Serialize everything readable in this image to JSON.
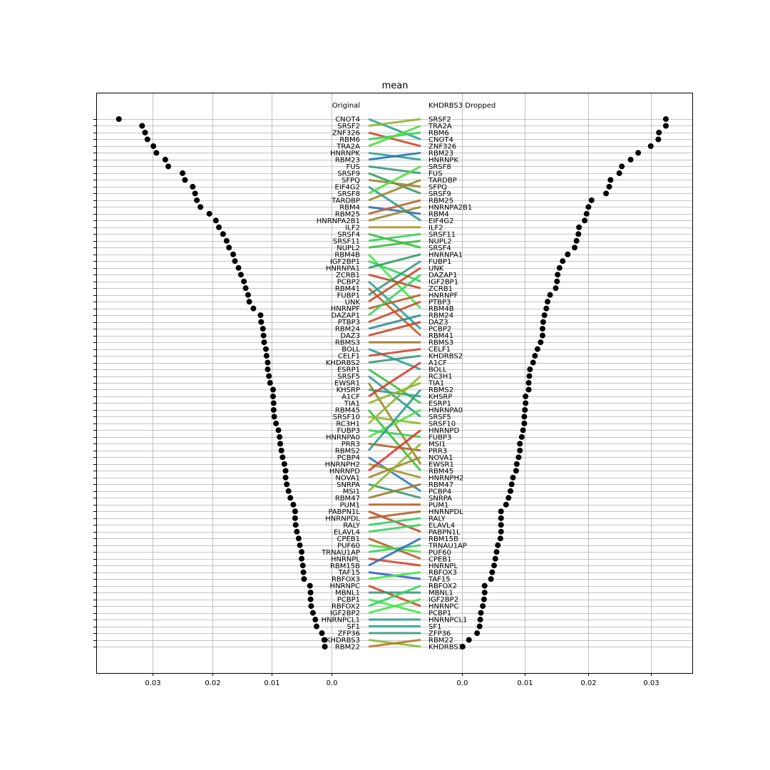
{
  "chart_data": {
    "type": "bump",
    "title": "mean",
    "left_column_title": "Original",
    "right_column_title": "KHDRBS3 Dropped",
    "grid": true,
    "left_axis": {
      "xlim": [
        0.0395,
        -0.0005
      ],
      "ticks": [
        0.03,
        0.02,
        0.01,
        0.0
      ],
      "tick_labels": [
        "0.03",
        "0.02",
        "0.01",
        "0.0"
      ]
    },
    "right_axis": {
      "xlim": [
        0.0,
        0.0366
      ],
      "ticks": [
        0.0,
        0.01,
        0.02,
        0.03
      ],
      "tick_labels": [
        "0.0",
        "0.01",
        "0.02",
        "0.03"
      ]
    },
    "original": {
      "labels": [
        "CNOT4",
        "SRSF2",
        "ZNF326",
        "RBM6",
        "TRA2A",
        "HNRNPK",
        "RBM23",
        "FUS",
        "SRSF9",
        "SFPQ",
        "EIF4G2",
        "SRSF8",
        "TARDBP",
        "RBM4",
        "RBM25",
        "HNRNPA2B1",
        "ILF2",
        "SRSF4",
        "SRSF11",
        "NUPL2",
        "RBM4B",
        "IGF2BP1",
        "HNRNPA1",
        "ZCRB1",
        "PCBP2",
        "RBM41",
        "FUBP1",
        "UNK",
        "HNRNPF",
        "DAZAP1",
        "PTBP3",
        "RBM24",
        "DAZ3",
        "RBMS3",
        "BOLL",
        "CELF1",
        "KHDRBS2",
        "ESRP1",
        "SRSF5",
        "EWSR1",
        "KHSRP",
        "A1CF",
        "TIA1",
        "RBM45",
        "SRSF10",
        "RC3H1",
        "FUBP3",
        "HNRNPA0",
        "PRR3",
        "RBMS2",
        "PCBP4",
        "HNRNPH2",
        "HNRNPD",
        "NOVA1",
        "SNRPA",
        "MSI1",
        "RBM47",
        "PUM1",
        "PABPN1L",
        "HNRNPDL",
        "RALY",
        "ELAVL4",
        "CPEB1",
        "PUF60",
        "TRNAU1AP",
        "HNRNPL",
        "RBM15B",
        "TAF15",
        "RBFOX3",
        "HNRNPC",
        "MBNL1",
        "PCBP1",
        "RBFOX2",
        "IGF2BP2",
        "HNRNPCL1",
        "SF1",
        "ZFP36",
        "KHDRBS3",
        "RBM22"
      ],
      "values": [
        0.0357,
        0.0318,
        0.0313,
        0.0309,
        0.0299,
        0.0294,
        0.0279,
        0.0274,
        0.025,
        0.0246,
        0.0233,
        0.0229,
        0.0226,
        0.022,
        0.0205,
        0.0194,
        0.0189,
        0.0182,
        0.0176,
        0.0172,
        0.0165,
        0.0162,
        0.0156,
        0.0152,
        0.0147,
        0.0144,
        0.014,
        0.0138,
        0.0131,
        0.0119,
        0.0118,
        0.0115,
        0.0114,
        0.0113,
        0.011,
        0.0109,
        0.0107,
        0.0107,
        0.0105,
        0.0103,
        0.0098,
        0.0098,
        0.0097,
        0.0097,
        0.0096,
        0.0093,
        0.0089,
        0.0087,
        0.0086,
        0.0084,
        0.0082,
        0.0079,
        0.0077,
        0.0077,
        0.0075,
        0.0072,
        0.0069,
        0.0064,
        0.0061,
        0.0061,
        0.006,
        0.0058,
        0.0055,
        0.0053,
        0.005,
        0.005,
        0.0048,
        0.0047,
        0.0046,
        0.0036,
        0.0035,
        0.0035,
        0.0034,
        0.0031,
        0.0027,
        0.0025,
        0.0016,
        0.0012,
        0.0011
      ]
    },
    "dropped": {
      "labels": [
        "SRSF2",
        "TRA2A",
        "RBM6",
        "CNOT4",
        "ZNF326",
        "RBM23",
        "HNRNPK",
        "SRSF8",
        "FUS",
        "TARDBP",
        "SFPQ",
        "SRSF9",
        "RBM25",
        "HNRNPA2B1",
        "RBM4",
        "EIF4G2",
        "ILF2",
        "SRSF11",
        "NUPL2",
        "SRSF4",
        "HNRNPA1",
        "FUBP1",
        "UNK",
        "DAZAP1",
        "IGF2BP1",
        "ZCRB1",
        "HNRNPF",
        "PTBP3",
        "RBM4B",
        "RBM24",
        "DAZ3",
        "PCBP2",
        "RBM41",
        "RBMS3",
        "CELF1",
        "KHDRBS2",
        "A1CF",
        "BOLL",
        "RC3H1",
        "TIA1",
        "RBMS2",
        "KHSRP",
        "ESRP1",
        "HNRNPA0",
        "SRSF5",
        "SRSF10",
        "HNRNPD",
        "FUBP3",
        "MSI1",
        "PRR3",
        "NOVA1",
        "EWSR1",
        "RBM45",
        "HNRNPH2",
        "RBM47",
        "PCBP4",
        "SNRPA",
        "PUM1",
        "HNRNPDL",
        "RALY",
        "ELAVL4",
        "PABPN1L",
        "RBM15B",
        "TRNAU1AP",
        "PUF60",
        "CPEB1",
        "HNRNPL",
        "RBFOX3",
        "TAF15",
        "RBFOX2",
        "MBNL1",
        "IGF2BP2",
        "HNRNPC",
        "PCBP1",
        "HNRNPCL1",
        "SF1",
        "ZFP36",
        "RBM22",
        "KHDRBS3"
      ],
      "values": [
        0.0324,
        0.0324,
        0.0313,
        0.0312,
        0.03,
        0.028,
        0.0268,
        0.0254,
        0.025,
        0.0236,
        0.0234,
        0.0229,
        0.0206,
        0.0201,
        0.0198,
        0.0195,
        0.0186,
        0.0185,
        0.0182,
        0.0179,
        0.0168,
        0.016,
        0.0155,
        0.0152,
        0.0151,
        0.0149,
        0.014,
        0.0136,
        0.0134,
        0.0131,
        0.0129,
        0.0128,
        0.0128,
        0.0125,
        0.012,
        0.0116,
        0.0113,
        0.0108,
        0.0107,
        0.0106,
        0.0106,
        0.0101,
        0.0101,
        0.01,
        0.0099,
        0.0099,
        0.0097,
        0.0095,
        0.0092,
        0.0092,
        0.009,
        0.0087,
        0.0086,
        0.0081,
        0.0079,
        0.0077,
        0.0074,
        0.007,
        0.0062,
        0.0062,
        0.0062,
        0.0062,
        0.0061,
        0.0057,
        0.0055,
        0.0053,
        0.0051,
        0.0048,
        0.0046,
        0.0036,
        0.0036,
        0.0035,
        0.0033,
        0.003,
        0.0029,
        0.0028,
        0.0024,
        0.0011,
        0.0001
      ]
    }
  }
}
